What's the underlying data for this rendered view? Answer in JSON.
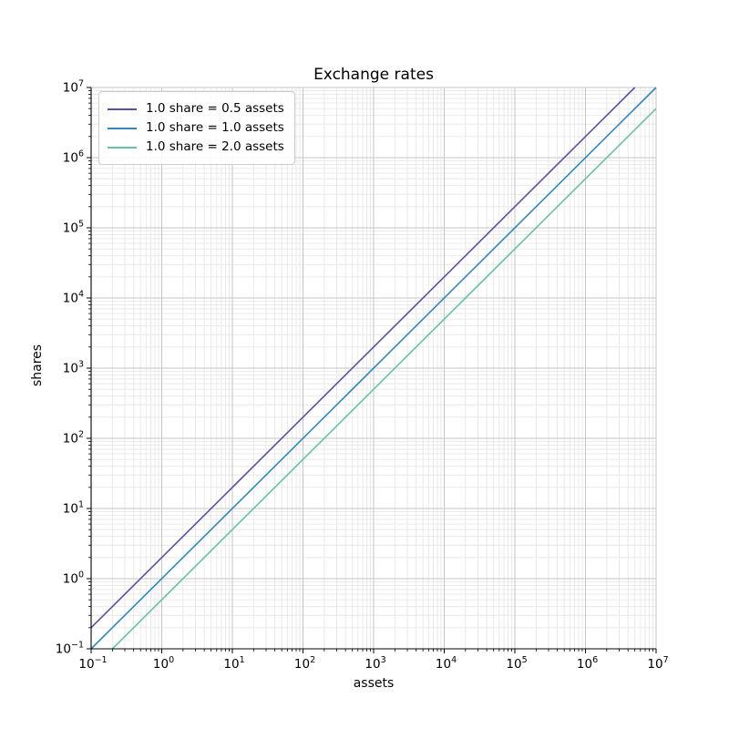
{
  "figure": {
    "title": "Exchange rates",
    "xlabel": "assets",
    "ylabel": "shares"
  },
  "legend": {
    "position": "upper-left",
    "items": [
      {
        "label": "1.0 share = 0.5 assets",
        "color": "#5e4fa2"
      },
      {
        "label": "1.0 share = 1.0 assets",
        "color": "#3288bd"
      },
      {
        "label": "1.0 share = 2.0 assets",
        "color": "#66c2a5"
      }
    ]
  },
  "chart_data": {
    "type": "line",
    "title": "Exchange rates",
    "xlabel": "assets",
    "ylabel": "shares",
    "xscale": "log",
    "yscale": "log",
    "xlim": [
      0.1,
      10000000
    ],
    "ylim": [
      0.1,
      10000000
    ],
    "grid": "both major and minor, light gray",
    "legend_position": "upper-left",
    "x_tick_exponents": [
      -1,
      0,
      1,
      2,
      3,
      4,
      5,
      6,
      7
    ],
    "y_tick_exponents": [
      -1,
      0,
      1,
      2,
      3,
      4,
      5,
      6,
      7
    ],
    "x_tick_labels": [
      "10^-1",
      "10^0",
      "10^1",
      "10^2",
      "10^3",
      "10^4",
      "10^5",
      "10^6",
      "10^7"
    ],
    "y_tick_labels": [
      "10^-1",
      "10^0",
      "10^1",
      "10^2",
      "10^3",
      "10^4",
      "10^5",
      "10^6",
      "10^7"
    ],
    "series": [
      {
        "name": "1.0 share = 0.5 assets",
        "color": "#5e4fa2",
        "assets_per_share": 0.5,
        "relation": "shares = assets / 0.5",
        "sample_points": [
          [
            0.1,
            0.2
          ],
          [
            1,
            2
          ],
          [
            1000,
            2000
          ],
          [
            5000000,
            10000000
          ]
        ]
      },
      {
        "name": "1.0 share = 1.0 assets",
        "color": "#3288bd",
        "assets_per_share": 1.0,
        "relation": "shares = assets / 1.0",
        "sample_points": [
          [
            0.1,
            0.1
          ],
          [
            1,
            1
          ],
          [
            1000,
            1000
          ],
          [
            10000000,
            10000000
          ]
        ]
      },
      {
        "name": "1.0 share = 2.0 assets",
        "color": "#66c2a5",
        "assets_per_share": 2.0,
        "relation": "shares = assets / 2.0",
        "sample_points": [
          [
            0.2,
            0.1
          ],
          [
            1,
            0.5
          ],
          [
            1000,
            500
          ],
          [
            10000000,
            5000000
          ]
        ]
      }
    ],
    "style": {
      "grid_major_color": "#c6c6c6",
      "grid_minor_color": "#e7e7e7",
      "spine_color": "#000000",
      "line_width": 1.6
    }
  }
}
